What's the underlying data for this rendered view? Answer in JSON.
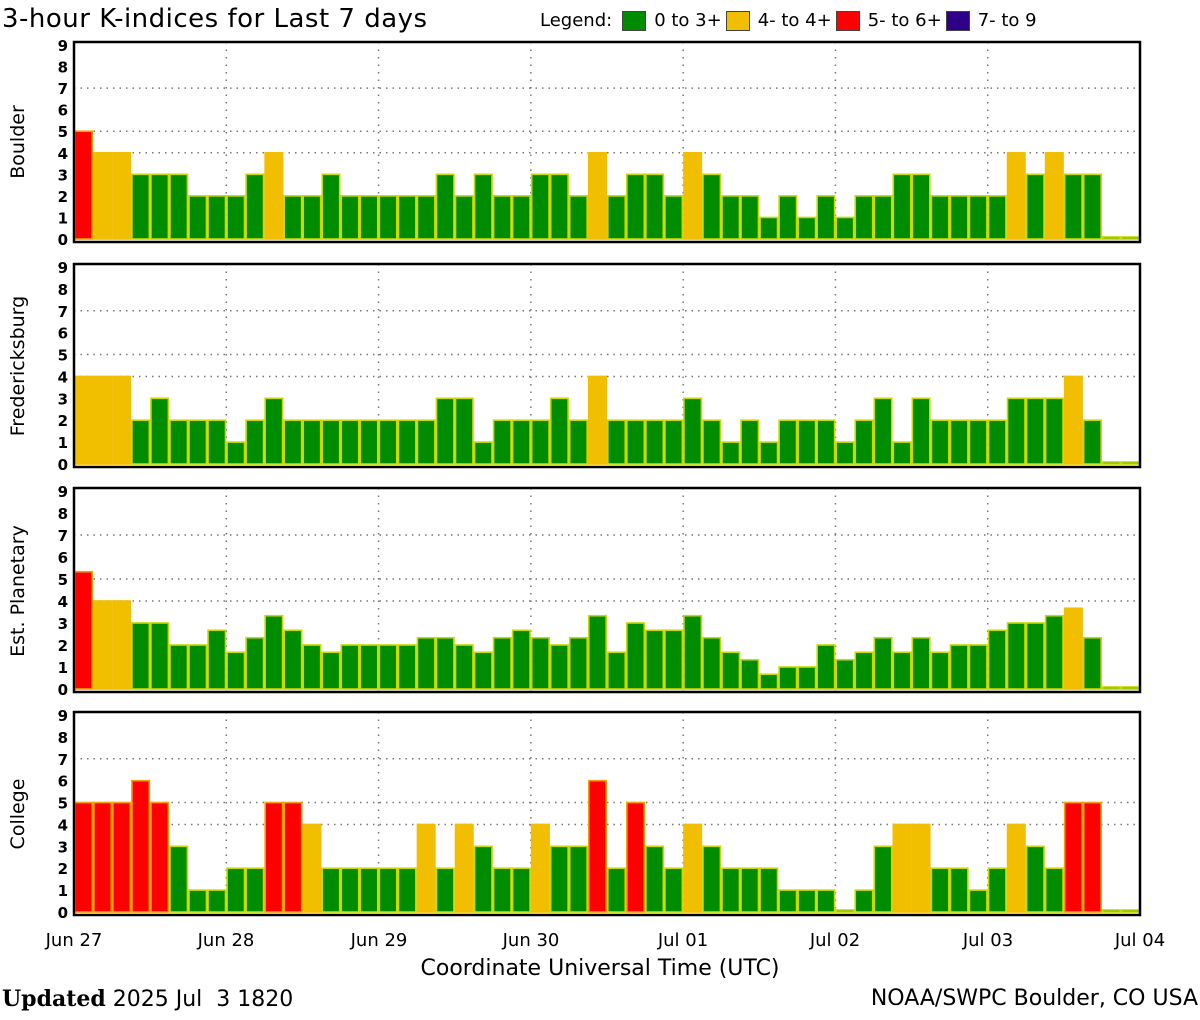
{
  "title": "3-hour K-indices for Last 7 days",
  "legend": {
    "label": "Legend:",
    "items": [
      {
        "label": "0 to 3+",
        "color": "#008C00"
      },
      {
        "label": "4- to 4+",
        "color": "#F2BE00"
      },
      {
        "label": "5- to 6+",
        "color": "#FF0000"
      },
      {
        "label": "7- to 9",
        "color": "#2E0088"
      }
    ]
  },
  "footer": {
    "updated_label": "Updated",
    "updated_value": "2025 Jul  3 1820",
    "credit": "NOAA/SWPC Boulder, CO USA"
  },
  "chart_data": {
    "type": "bar",
    "title": "3-hour K-indices for Last 7 days",
    "xlabel": "Coordinate Universal Time (UTC)",
    "x_tick_labels": [
      "Jun 27",
      "Jun 28",
      "Jun 29",
      "Jun 30",
      "Jul 01",
      "Jul 02",
      "Jul 03",
      "Jul 04"
    ],
    "y_ticks": [
      "0",
      "1",
      "2",
      "3",
      "4",
      "5",
      "6",
      "7",
      "8",
      "9"
    ],
    "ylim": [
      0,
      9
    ],
    "bars_per_day": 8,
    "grid": true,
    "panels": [
      {
        "name": "Boulder",
        "values": [
          5,
          4,
          4,
          3,
          3,
          3,
          2,
          2,
          2,
          3,
          4,
          2,
          2,
          3,
          2,
          2,
          2,
          2,
          2,
          3,
          2,
          3,
          2,
          2,
          3,
          3,
          2,
          4,
          2,
          3,
          3,
          2,
          4,
          3,
          2,
          2,
          1,
          2,
          1,
          2,
          1,
          2,
          2,
          3,
          3,
          2,
          2,
          2,
          2,
          4,
          3,
          4,
          3,
          3,
          0,
          0
        ]
      },
      {
        "name": "Fredericksburg",
        "values": [
          4,
          4,
          4,
          2,
          3,
          2,
          2,
          2,
          1,
          2,
          3,
          2,
          2,
          2,
          2,
          2,
          2,
          2,
          2,
          3,
          3,
          1,
          2,
          2,
          2,
          3,
          2,
          4,
          2,
          2,
          2,
          2,
          3,
          2,
          1,
          2,
          1,
          2,
          2,
          2,
          1,
          2,
          3,
          1,
          3,
          2,
          2,
          2,
          2,
          3,
          3,
          3,
          4,
          2,
          0,
          0
        ]
      },
      {
        "name": "Est. Planetary",
        "values": [
          5.33,
          4,
          4,
          3,
          3,
          2,
          2,
          2.67,
          1.67,
          2.33,
          3.33,
          2.67,
          2,
          1.67,
          2,
          2,
          2,
          2,
          2.33,
          2.33,
          2,
          1.67,
          2.33,
          2.67,
          2.33,
          2,
          2.33,
          3.33,
          1.67,
          3,
          2.67,
          2.67,
          3.33,
          2.33,
          1.67,
          1.33,
          0.67,
          1,
          1,
          2,
          1.33,
          1.67,
          2.33,
          1.67,
          2.33,
          1.67,
          2,
          2,
          2.67,
          3,
          3,
          3.33,
          3.67,
          2.33,
          0,
          0
        ]
      },
      {
        "name": "College",
        "values": [
          5,
          5,
          5,
          6,
          5,
          3,
          1,
          1,
          2,
          2,
          5,
          5,
          4,
          2,
          2,
          2,
          2,
          2,
          4,
          2,
          4,
          3,
          2,
          2,
          4,
          3,
          3,
          6,
          2,
          5,
          3,
          2,
          4,
          3,
          2,
          2,
          2,
          1,
          1,
          1,
          0,
          1,
          3,
          4,
          4,
          2,
          2,
          1,
          2,
          4,
          3,
          2,
          5,
          5,
          0,
          0
        ]
      }
    ]
  }
}
